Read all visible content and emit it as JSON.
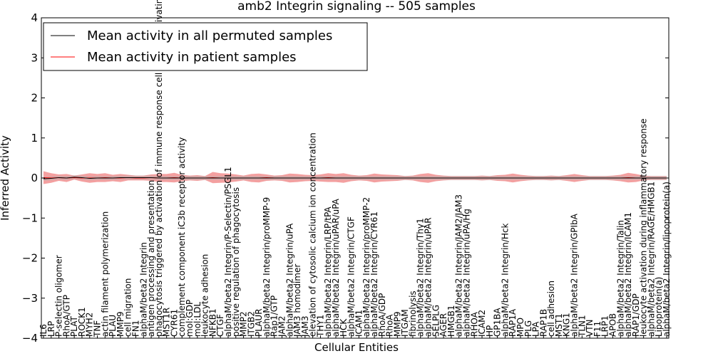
{
  "chart_data": {
    "type": "line",
    "title": "amb2 Integrin signaling -- 505 samples",
    "xlabel": "Cellular Entities",
    "ylabel": "Inferred Activity",
    "ylim": [
      -4,
      4
    ],
    "yticks": [
      -4,
      -3,
      -2,
      -1,
      0,
      1,
      2,
      3,
      4
    ],
    "ytick_labels": [
      "−4",
      "−3",
      "−2",
      "−1",
      "0",
      "1",
      "2",
      "3",
      "4"
    ],
    "legend_position": "top-left",
    "categories": [
      "IL6",
      "LRP",
      "P-selectin oligomer",
      "RhoA/GTP",
      "PLAT",
      "ROCK1",
      "MYH2",
      "TNF",
      "actin filament polymerization",
      "PLAU",
      "MMP9",
      "cell migration",
      "FN1",
      "alphaM/beta2 Integrin",
      "antigen processing and presentation",
      "phagocytosis triggered by activation of immune response cell surface activating receptor",
      "MST1R",
      "CYR61",
      "complement component iC3b receptor activity",
      "mol:GDP",
      "mol:LDL",
      "leukocyte adhesion",
      "NFKB1",
      "CTGF",
      "alphaM/beta2 Integrin/P-Selectin/PSGL1",
      "positive regulation of phagocytosis",
      "MMP2",
      "ITGB2",
      "PLAUR",
      "alphaM/beta2 Integrin/proMMP-9",
      "Rap1/GTP",
      "JAM2",
      "alphaM/beta2 Integrin/uPA",
      "JAM3 homodimer",
      "JAM3",
      "elevation of cytosolic calcium ion concentration",
      "THY1",
      "alphaM/beta2 Integrin/LRP/tPA",
      "alphaM/beta2 Integrin/uPAR/uPA",
      "HCK",
      "alphaM/beta2 Integrin/CTGF",
      "ICAM1",
      "alphaM/beta2 Integrin/proMMP-2",
      "alphaM/beta2 Integrin/CYR61",
      "RhoA/GDP",
      "RhoA",
      "MMP9",
      "ITGAM",
      "fibrinolysis",
      "alphaM/beta2 Integrin/Thy1",
      "alphaM/beta2 Integrin/uPAR",
      "SELPLG",
      "AGER",
      "HMGB1",
      "alphaM/beta2 Integrin/JAM2/JAM3",
      "alphaM/beta2 Integrin/uPA/Hg",
      "RHOA",
      "ICAM2",
      "HP",
      "GP1BA",
      "alphaM/beta2 Integrin/Hck",
      "RAP1A",
      "MPO",
      "PLG",
      "LPA",
      "RAP1B",
      "cell adhesion",
      "MST1",
      "KNG1",
      "alphaM/beta2 Integrin/GPIbA",
      "TLN1",
      "VTN",
      "F11",
      "LRP1",
      "APOB",
      "alphaM/beta2 Integrin/Talin",
      "alphaM/beta2 Integrin/ICAM1",
      "RAP1/GDP",
      "leukocyte activation during inflammatory response",
      "alphaM/beta2 Integrin/RAGE/HMGB1",
      "Lipoprotein(a)",
      "alphaM/beta2 Integrin/lipoprotein(a)"
    ],
    "series": [
      {
        "name": "Mean activity in all permuted samples",
        "color": "#000000",
        "values": [
          -0.02,
          -0.01,
          0.01,
          0.0,
          0.02,
          0.01,
          -0.01,
          0.0,
          0.0,
          0.0,
          0.01,
          0.01,
          0.01,
          0.01,
          0.01,
          0.0,
          0.0,
          0.0,
          0.0,
          0.0,
          0.0,
          0.0,
          0.0,
          0.0,
          0.0,
          0.0,
          0.0,
          0.0,
          0.0,
          0.0,
          0.0,
          0.0,
          0.0,
          0.0,
          0.0,
          0.0,
          0.0,
          0.0,
          0.0,
          0.0,
          0.0,
          0.0,
          0.0,
          0.0,
          0.0,
          0.0,
          0.0,
          0.0,
          0.0,
          0.0,
          0.0,
          0.0,
          0.0,
          0.0,
          0.0,
          0.0,
          0.0,
          0.0,
          0.0,
          0.0,
          0.0,
          0.0,
          0.0,
          0.0,
          0.0,
          0.0,
          0.0,
          0.0,
          0.0,
          0.0,
          0.0,
          0.0,
          0.0,
          0.0,
          0.0,
          0.0,
          0.0,
          0.0,
          0.0,
          0.0,
          0.0,
          0.0
        ]
      },
      {
        "name": "Mean activity in patient samples",
        "color": "#ff0000",
        "band_color": "#f08080",
        "values": [
          0.01,
          0.0,
          0.01,
          0.0,
          0.01,
          0.0,
          0.0,
          0.0,
          0.01,
          0.0,
          0.0,
          0.01,
          0.0,
          0.0,
          0.01,
          0.0,
          0.0,
          0.01,
          0.0,
          0.0,
          0.0,
          0.0,
          0.01,
          0.0,
          0.0,
          0.0,
          0.0,
          0.0,
          0.0,
          0.01,
          0.0,
          0.0,
          0.0,
          0.0,
          0.0,
          0.0,
          0.0,
          0.01,
          0.0,
          0.0,
          0.0,
          0.0,
          0.0,
          0.0,
          0.0,
          0.0,
          0.0,
          0.0,
          0.0,
          0.0,
          0.0,
          0.0,
          0.0,
          0.0,
          0.0,
          0.0,
          0.0,
          0.0,
          0.0,
          0.0,
          0.0,
          0.0,
          0.0,
          0.0,
          0.0,
          0.0,
          0.0,
          0.0,
          0.0,
          0.0,
          0.0,
          0.0,
          0.0,
          0.0,
          0.0,
          0.0,
          0.01,
          0.0,
          0.0,
          0.0,
          0.0,
          0.0
        ],
        "spread": [
          0.16,
          0.12,
          0.08,
          0.1,
          0.05,
          0.09,
          0.12,
          0.1,
          0.11,
          0.08,
          0.1,
          0.07,
          0.06,
          0.06,
          0.08,
          0.1,
          0.1,
          0.12,
          0.08,
          0.06,
          0.07,
          0.05,
          0.14,
          0.12,
          0.11,
          0.09,
          0.06,
          0.1,
          0.11,
          0.08,
          0.06,
          0.07,
          0.11,
          0.1,
          0.08,
          0.07,
          0.09,
          0.11,
          0.1,
          0.12,
          0.08,
          0.06,
          0.07,
          0.11,
          0.09,
          0.08,
          0.07,
          0.05,
          0.06,
          0.1,
          0.12,
          0.08,
          0.06,
          0.05,
          0.05,
          0.05,
          0.05,
          0.06,
          0.05,
          0.07,
          0.08,
          0.11,
          0.08,
          0.06,
          0.05,
          0.05,
          0.06,
          0.05,
          0.07,
          0.1,
          0.07,
          0.05,
          0.05,
          0.05,
          0.06,
          0.08,
          0.12,
          0.1,
          0.06,
          0.05,
          0.05,
          0.05
        ]
      }
    ],
    "permuted_band_spread": 0.05
  }
}
